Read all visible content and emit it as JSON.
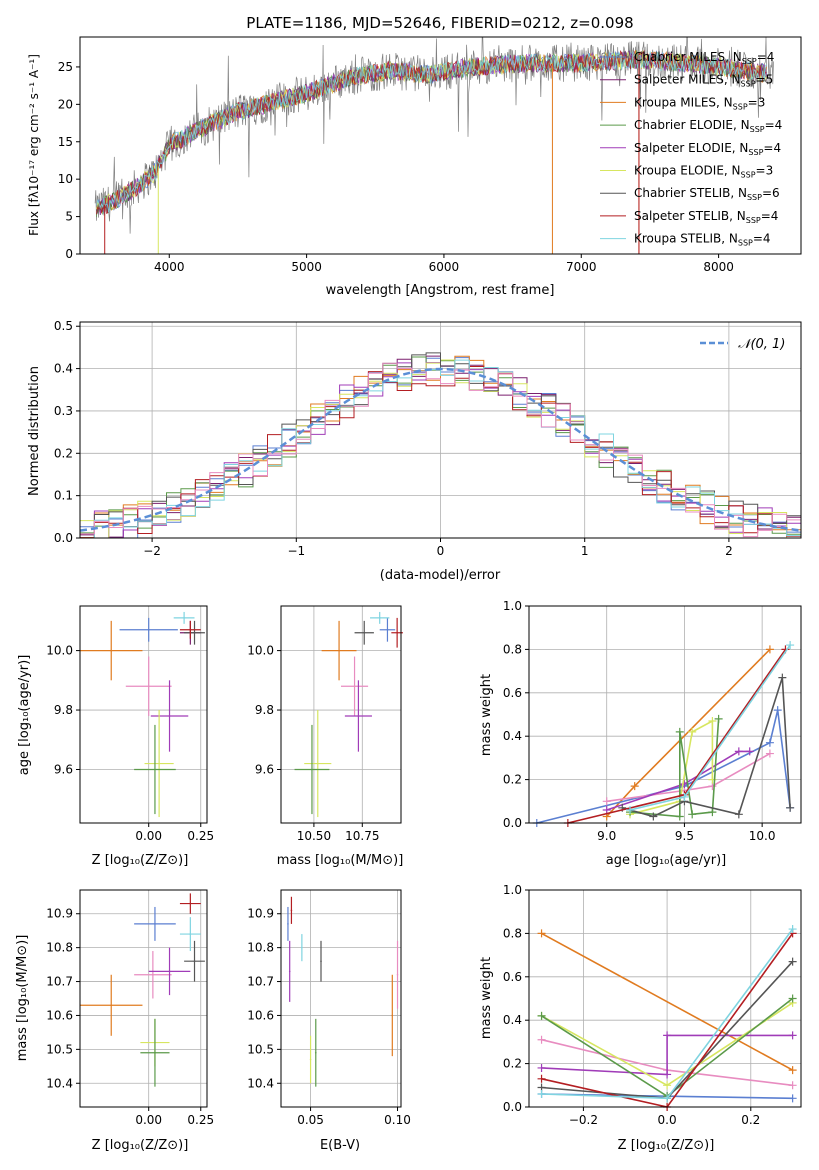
{
  "figure_title": "PLATE=1186, MJD=52646, FIBERID=0212, z=0.098",
  "model_colors": {
    "Chabrier MILES": "#5b7fd1",
    "Salpeter MILES": "#7a1f6e",
    "Kroupa MILES": "#e07b20",
    "Chabrier ELODIE": "#5b9a4a",
    "Salpeter ELODIE": "#a03cb8",
    "Kroupa ELODIE": "#d7e660",
    "Chabrier STELIB": "#555555",
    "Salpeter STELIB": "#b31e22",
    "Kroupa STELIB": "#7fd4e0",
    "data": "#7f7f7f",
    "extra_pink": "#e88cc0"
  },
  "chart_data": [
    {
      "id": "spectrum",
      "type": "line",
      "title": "PLATE=1186, MJD=52646, FIBERID=0212, z=0.098",
      "xlabel": "wavelength [Angstrom, rest frame]",
      "ylabel": "Flux [fλ10⁻¹⁷ erg cm⁻² s⁻¹ A⁻¹]",
      "xlim": [
        3350,
        8600
      ],
      "ylim": [
        0,
        29
      ],
      "xticks": [
        4000,
        5000,
        6000,
        7000,
        8000
      ],
      "yticks": [
        0,
        5,
        10,
        15,
        20,
        25
      ],
      "legend_position": "top-right",
      "legend": [
        {
          "label": "Chabrier MILES, N",
          "sub": "SSP",
          "tail": "=4",
          "color": "#5b7fd1"
        },
        {
          "label": "Salpeter MILES, N",
          "sub": "SSP",
          "tail": "=5",
          "color": "#7a1f6e"
        },
        {
          "label": "Kroupa MILES, N",
          "sub": "SSP",
          "tail": "=3",
          "color": "#e07b20"
        },
        {
          "label": "Chabrier ELODIE, N",
          "sub": "SSP",
          "tail": "=4",
          "color": "#5b9a4a"
        },
        {
          "label": "Salpeter ELODIE, N",
          "sub": "SSP",
          "tail": "=4",
          "color": "#a03cb8"
        },
        {
          "label": "Kroupa ELODIE, N",
          "sub": "SSP",
          "tail": "=3",
          "color": "#d7e660"
        },
        {
          "label": "Chabrier STELIB, N",
          "sub": "SSP",
          "tail": "=6",
          "color": "#555555"
        },
        {
          "label": "Salpeter STELIB, N",
          "sub": "SSP",
          "tail": "=4",
          "color": "#b31e22"
        },
        {
          "label": "Kroupa STELIB, N",
          "sub": "SSP",
          "tail": "=4",
          "color": "#7fd4e0"
        }
      ],
      "continuum_x": [
        3460,
        3650,
        3800,
        3900,
        4000,
        4200,
        4500,
        4800,
        5000,
        5300,
        5600,
        5900,
        6200,
        6600,
        7000,
        7400,
        7800,
        8200,
        8400
      ],
      "continuum_y": [
        6,
        7.5,
        9.5,
        11,
        14.5,
        16.5,
        19,
        20.5,
        21.5,
        23.5,
        24.5,
        24,
        25,
        25.5,
        25.5,
        26,
        25.5,
        24.5,
        24
      ]
    },
    {
      "id": "residuals",
      "type": "line",
      "xlabel": "(data-model)/error",
      "ylabel": "Normed distribution",
      "xlim": [
        -2.5,
        2.5
      ],
      "ylim": [
        0,
        0.51
      ],
      "xticks": [
        -2,
        -1,
        0,
        1,
        2
      ],
      "xtick_labels": [
        "−2",
        "−1",
        "0",
        "1",
        "2"
      ],
      "yticks": [
        0.0,
        0.1,
        0.2,
        0.3,
        0.4,
        0.5
      ],
      "ytick_labels": [
        "0.0",
        "0.1",
        "0.2",
        "0.3",
        "0.4",
        "0.5"
      ],
      "grid": true,
      "legend_position": "top-right",
      "reference_curve": {
        "label": "𝒩(0, 1)",
        "mean": 0,
        "sigma": 1,
        "color": "#5b8fd6"
      },
      "bin_width": 0.1
    },
    {
      "id": "age-vs-z",
      "type": "scatter",
      "xlabel": "Z [log₁₀(Z/Z⊙)]",
      "ylabel": "age  [log₁₀(age/yr)]",
      "xlim": [
        -0.33,
        0.28
      ],
      "ylim": [
        9.42,
        10.15
      ],
      "xticks": [
        0.0,
        0.25
      ],
      "xtick_labels": [
        "0.00",
        "0.25"
      ],
      "yticks": [
        9.6,
        9.8,
        10.0
      ],
      "ytick_labels": [
        "9.6",
        "9.8",
        "10.0"
      ],
      "grid": true,
      "points": [
        {
          "x": -0.18,
          "y": 10.0,
          "xerr": 0.15,
          "yerr": 0.1,
          "color": "#e07b20"
        },
        {
          "x": 0.0,
          "y": 10.07,
          "xerr": 0.14,
          "yerr": 0.04,
          "color": "#5b7fd1"
        },
        {
          "x": 0.2,
          "y": 10.06,
          "xerr": 0.05,
          "yerr": 0.04,
          "color": "#7a1f6e"
        },
        {
          "x": 0.17,
          "y": 10.11,
          "xerr": 0.05,
          "yerr": 0.02,
          "color": "#7fd4e0"
        },
        {
          "x": 0.22,
          "y": 10.06,
          "xerr": 0.05,
          "yerr": 0.04,
          "color": "#555555"
        },
        {
          "x": 0.2,
          "y": 10.07,
          "xerr": 0.05,
          "yerr": 0.03,
          "color": "#b31e22"
        },
        {
          "x": 0.0,
          "y": 9.88,
          "xerr": 0.11,
          "yerr": 0.1,
          "color": "#e88cc0"
        },
        {
          "x": 0.1,
          "y": 9.78,
          "xerr": 0.09,
          "yerr": 0.12,
          "color": "#a03cb8"
        },
        {
          "x": 0.05,
          "y": 9.62,
          "xerr": 0.07,
          "yerr": 0.18,
          "color": "#d7e660"
        },
        {
          "x": 0.03,
          "y": 9.6,
          "xerr": 0.1,
          "yerr": 0.15,
          "color": "#5b9a4a"
        }
      ]
    },
    {
      "id": "age-vs-mass",
      "type": "scatter",
      "xlabel": "mass [log₁₀(M/M⊙)]",
      "ylabel": "",
      "xlim": [
        10.33,
        10.95
      ],
      "ylim": [
        9.42,
        10.15
      ],
      "xticks": [
        10.5,
        10.75
      ],
      "xtick_labels": [
        "10.50",
        "10.75"
      ],
      "yticks": [
        9.6,
        9.8,
        10.0
      ],
      "ytick_labels": [
        "9.6",
        "9.8",
        "10.0"
      ],
      "grid": true,
      "points": [
        {
          "x": 10.63,
          "y": 10.0,
          "xerr": 0.09,
          "yerr": 0.1,
          "color": "#e07b20"
        },
        {
          "x": 10.88,
          "y": 10.07,
          "xerr": 0.04,
          "yerr": 0.04,
          "color": "#5b7fd1"
        },
        {
          "x": 10.93,
          "y": 10.06,
          "xerr": 0.03,
          "yerr": 0.05,
          "color": "#b31e22"
        },
        {
          "x": 10.84,
          "y": 10.11,
          "xerr": 0.05,
          "yerr": 0.02,
          "color": "#7fd4e0"
        },
        {
          "x": 10.76,
          "y": 10.06,
          "xerr": 0.05,
          "yerr": 0.04,
          "color": "#555555"
        },
        {
          "x": 10.71,
          "y": 9.88,
          "xerr": 0.07,
          "yerr": 0.1,
          "color": "#e88cc0"
        },
        {
          "x": 10.73,
          "y": 9.78,
          "xerr": 0.07,
          "yerr": 0.12,
          "color": "#a03cb8"
        },
        {
          "x": 10.52,
          "y": 9.62,
          "xerr": 0.07,
          "yerr": 0.18,
          "color": "#d7e660"
        },
        {
          "x": 10.49,
          "y": 9.6,
          "xerr": 0.09,
          "yerr": 0.15,
          "color": "#5b9a4a"
        }
      ]
    },
    {
      "id": "massweight-vs-age",
      "type": "line",
      "xlabel": "age  [log₁₀(age/yr)]",
      "ylabel": "mass weight",
      "xlim": [
        8.5,
        10.25
      ],
      "ylim": [
        0,
        1.0
      ],
      "xticks": [
        9.0,
        9.5,
        10.0
      ],
      "xtick_labels": [
        "9.0",
        "9.5",
        "10.0"
      ],
      "yticks": [
        0.0,
        0.2,
        0.4,
        0.6,
        0.8,
        1.0
      ],
      "ytick_labels": [
        "0.0",
        "0.2",
        "0.4",
        "0.6",
        "0.8",
        "1.0"
      ],
      "grid": true,
      "series": [
        {
          "color": "#e07b20",
          "x": [
            9.0,
            9.18,
            10.05
          ],
          "y": [
            0.03,
            0.17,
            0.8
          ]
        },
        {
          "color": "#5b7fd1",
          "x": [
            8.55,
            9.5,
            10.05,
            10.1,
            10.18
          ],
          "y": [
            0.0,
            0.17,
            0.37,
            0.52,
            0.07
          ]
        },
        {
          "color": "#e88cc0",
          "x": [
            9.0,
            9.5,
            9.68,
            10.05
          ],
          "y": [
            0.1,
            0.15,
            0.17,
            0.32
          ]
        },
        {
          "color": "#a03cb8",
          "x": [
            9.0,
            9.5,
            9.85,
            9.92
          ],
          "y": [
            0.06,
            0.18,
            0.33,
            0.33
          ]
        },
        {
          "color": "#d7e660",
          "x": [
            9.15,
            9.47,
            9.55,
            9.68,
            9.68
          ],
          "y": [
            0.04,
            0.1,
            0.42,
            0.47,
            0.2
          ]
        },
        {
          "color": "#5b9a4a",
          "x": [
            9.15,
            9.47,
            9.47,
            9.55,
            9.68,
            9.72
          ],
          "y": [
            0.05,
            0.03,
            0.42,
            0.04,
            0.05,
            0.48
          ]
        },
        {
          "color": "#555555",
          "x": [
            9.1,
            9.3,
            9.5,
            9.85,
            10.13,
            10.18
          ],
          "y": [
            0.07,
            0.03,
            0.1,
            0.04,
            0.67,
            0.07
          ]
        },
        {
          "color": "#b31e22",
          "x": [
            8.75,
            9.5,
            10.15
          ],
          "y": [
            0.0,
            0.13,
            0.8
          ]
        },
        {
          "color": "#7fd4e0",
          "x": [
            9.15,
            9.5,
            10.18
          ],
          "y": [
            0.06,
            0.12,
            0.82
          ]
        }
      ]
    },
    {
      "id": "mass-vs-z",
      "type": "scatter",
      "xlabel": "Z [log₁₀(Z/Z⊙)]",
      "ylabel": "mass [log₁₀(M/M⊙)]",
      "xlim": [
        -0.33,
        0.28
      ],
      "ylim": [
        10.33,
        10.97
      ],
      "xticks": [
        0.0,
        0.25
      ],
      "xtick_labels": [
        "0.00",
        "0.25"
      ],
      "yticks": [
        10.4,
        10.5,
        10.6,
        10.7,
        10.8,
        10.9
      ],
      "ytick_labels": [
        "10.4",
        "10.5",
        "10.6",
        "10.7",
        "10.8",
        "10.9"
      ],
      "grid": true,
      "points": [
        {
          "x": -0.18,
          "y": 10.63,
          "xerr": 0.15,
          "yerr": 0.09,
          "color": "#e07b20"
        },
        {
          "x": 0.02,
          "y": 10.72,
          "xerr": 0.09,
          "yerr": 0.07,
          "color": "#e88cc0"
        },
        {
          "x": 0.1,
          "y": 10.73,
          "xerr": 0.1,
          "yerr": 0.07,
          "color": "#a03cb8"
        },
        {
          "x": 0.03,
          "y": 10.52,
          "xerr": 0.07,
          "yerr": 0.07,
          "color": "#d7e660"
        },
        {
          "x": 0.03,
          "y": 10.49,
          "xerr": 0.07,
          "yerr": 0.1,
          "color": "#5b9a4a"
        },
        {
          "x": 0.03,
          "y": 10.87,
          "xerr": 0.1,
          "yerr": 0.05,
          "color": "#5b7fd1"
        },
        {
          "x": 0.2,
          "y": 10.93,
          "xerr": 0.05,
          "yerr": 0.03,
          "color": "#b31e22"
        },
        {
          "x": 0.2,
          "y": 10.84,
          "xerr": 0.05,
          "yerr": 0.05,
          "color": "#7fd4e0"
        },
        {
          "x": 0.22,
          "y": 10.76,
          "xerr": 0.05,
          "yerr": 0.06,
          "color": "#555555"
        }
      ]
    },
    {
      "id": "mass-vs-ebv",
      "type": "scatter",
      "xlabel": "E(B-V)",
      "ylabel": "",
      "xlim": [
        0.033,
        0.102
      ],
      "ylim": [
        10.33,
        10.97
      ],
      "xticks": [
        0.05,
        0.1
      ],
      "xtick_labels": [
        "0.05",
        "0.10"
      ],
      "yticks": [
        10.4,
        10.5,
        10.6,
        10.7,
        10.8,
        10.9
      ],
      "ytick_labels": [
        "10.4",
        "10.5",
        "10.6",
        "10.7",
        "10.8",
        "10.9"
      ],
      "grid": true,
      "points": [
        {
          "x": 0.037,
          "y": 10.87,
          "yerr": 0.05,
          "color": "#5b7fd1"
        },
        {
          "x": 0.038,
          "y": 10.73,
          "yerr": 0.09,
          "color": "#a03cb8"
        },
        {
          "x": 0.039,
          "y": 10.91,
          "yerr": 0.04,
          "color": "#b31e22"
        },
        {
          "x": 0.045,
          "y": 10.8,
          "yerr": 0.04,
          "color": "#7fd4e0"
        },
        {
          "x": 0.05,
          "y": 10.47,
          "yerr": 0.07,
          "color": "#d7e660"
        },
        {
          "x": 0.053,
          "y": 10.49,
          "yerr": 0.1,
          "color": "#5b9a4a"
        },
        {
          "x": 0.056,
          "y": 10.76,
          "yerr": 0.06,
          "color": "#555555"
        },
        {
          "x": 0.097,
          "y": 10.6,
          "yerr": 0.12,
          "color": "#e07b20"
        },
        {
          "x": 0.1,
          "y": 10.72,
          "yerr": 0.1,
          "color": "#e88cc0"
        }
      ]
    },
    {
      "id": "massweight-vs-z",
      "type": "line",
      "xlabel": "Z [log₁₀(Z/Z⊙)]",
      "ylabel": "mass weight",
      "xlim": [
        -0.33,
        0.32
      ],
      "ylim": [
        0,
        1.0
      ],
      "xticks": [
        -0.2,
        0.0,
        0.2
      ],
      "xtick_labels": [
        "−0.2",
        "0.0",
        "0.2"
      ],
      "yticks": [
        0.0,
        0.2,
        0.4,
        0.6,
        0.8,
        1.0
      ],
      "ytick_labels": [
        "0.0",
        "0.2",
        "0.4",
        "0.6",
        "0.8",
        "1.0"
      ],
      "grid": true,
      "series": [
        {
          "color": "#e07b20",
          "x": [
            -0.3,
            0.3
          ],
          "y": [
            0.8,
            0.17
          ]
        },
        {
          "color": "#5b7fd1",
          "x": [
            -0.3,
            0.0,
            0.3
          ],
          "y": [
            0.06,
            0.05,
            0.04
          ]
        },
        {
          "color": "#e88cc0",
          "x": [
            -0.3,
            0.0,
            0.3
          ],
          "y": [
            0.31,
            0.17,
            0.1
          ]
        },
        {
          "color": "#a03cb8",
          "x": [
            -0.3,
            0.0,
            0.0,
            0.3
          ],
          "y": [
            0.18,
            0.15,
            0.33,
            0.33
          ]
        },
        {
          "color": "#d7e660",
          "x": [
            -0.3,
            0.0,
            0.3
          ],
          "y": [
            0.42,
            0.1,
            0.48
          ]
        },
        {
          "color": "#5b9a4a",
          "x": [
            -0.3,
            0.0,
            0.3
          ],
          "y": [
            0.42,
            0.05,
            0.5
          ]
        },
        {
          "color": "#555555",
          "x": [
            -0.3,
            0.0,
            0.3
          ],
          "y": [
            0.09,
            0.04,
            0.67
          ]
        },
        {
          "color": "#b31e22",
          "x": [
            -0.3,
            0.0,
            0.3
          ],
          "y": [
            0.13,
            0.0,
            0.8
          ]
        },
        {
          "color": "#7fd4e0",
          "x": [
            -0.3,
            0.0,
            0.3
          ],
          "y": [
            0.06,
            0.04,
            0.82
          ]
        }
      ]
    }
  ]
}
